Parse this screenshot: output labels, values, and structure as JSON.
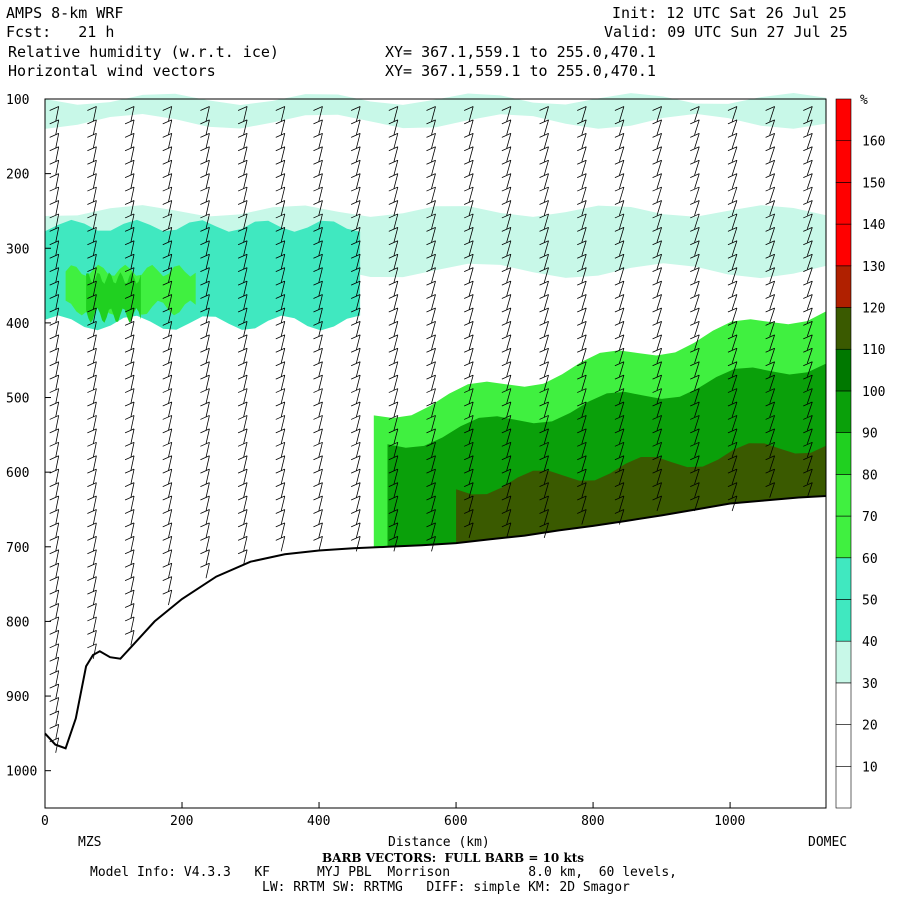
{
  "header": {
    "model": "AMPS 8-km WRF",
    "init": "Init: 12 UTC Sat 26 Jul 25",
    "fcst": "Fcst:   21 h",
    "valid": "Valid: 09 UTC Sun 27 Jul 25",
    "field1": "Relative humidity (w.r.t. ice)",
    "field2": "Horizontal wind vectors",
    "xy1": "XY= 367.1,559.1 to 255.0,470.1",
    "xy2": "XY= 367.1,559.1 to 255.0,470.1"
  },
  "footer": {
    "left_station": "MZS",
    "right_station": "DOMEC",
    "barb_note": "BARB VECTORS:  FULL BARB = 10 kts",
    "model_info": "Model Info: V4.3.3   KF      MYJ PBL  Morrison          8.0 km,  60 levels,",
    "model_info2": "LW: RRTM SW: RRTMG   DIFF: simple KM: 2D Smagor"
  },
  "colors": {
    "c0": "#ffffff",
    "c30": "#c8f8e8",
    "c40": "#40e8c0",
    "c60": "#40f040",
    "c70": "#20d020",
    "c80": "#0aa00a",
    "c90": "#007800",
    "c100": "#3a5a00",
    "c110": "#b02000",
    "c120": "#ff0000",
    "terrain": "#ffffff"
  },
  "chart_data": {
    "type": "heatmap",
    "title": "Relative humidity (w.r.t. ice)",
    "xlabel": "Distance (km)",
    "ylabel": "",
    "xlim": [
      0,
      1140
    ],
    "ylim": [
      1050,
      100
    ],
    "x_ticks": [
      0,
      200,
      400,
      600,
      800,
      1000
    ],
    "y_ticks": [
      100,
      200,
      300,
      400,
      500,
      600,
      700,
      800,
      900,
      1000
    ],
    "colorbar": {
      "unit": "%",
      "ticks": [
        10,
        20,
        30,
        40,
        50,
        60,
        70,
        80,
        90,
        100,
        110,
        120,
        130,
        140,
        150,
        160
      ]
    },
    "terrain_surface": {
      "x": [
        0,
        15,
        30,
        45,
        60,
        70,
        80,
        95,
        110,
        130,
        160,
        200,
        250,
        300,
        350,
        400,
        450,
        500,
        550,
        600,
        650,
        700,
        750,
        800,
        850,
        900,
        950,
        1000,
        1050,
        1100,
        1140
      ],
      "y": [
        950,
        965,
        970,
        930,
        860,
        845,
        840,
        848,
        850,
        830,
        800,
        770,
        740,
        720,
        710,
        705,
        702,
        700,
        698,
        695,
        690,
        685,
        678,
        672,
        665,
        658,
        650,
        642,
        638,
        634,
        632
      ]
    },
    "humidity_regions": [
      {
        "range": "30-40",
        "description": "upper band",
        "x": [
          0,
          1140
        ],
        "y": [
          100,
          130
        ]
      },
      {
        "range": "30-40",
        "description": "band",
        "x": [
          0,
          1140
        ],
        "y": [
          250,
          330
        ]
      },
      {
        "range": "40-50",
        "description": "band",
        "x": [
          0,
          460
        ],
        "y": [
          270,
          400
        ]
      },
      {
        "range": "50-60",
        "description": "band",
        "x": [
          30,
          220
        ],
        "y": [
          330,
          380
        ]
      },
      {
        "range": "60-70",
        "description": "cell",
        "x": [
          60,
          140
        ],
        "y": [
          340,
          390
        ]
      },
      {
        "range": "70-80",
        "description": "lower layer",
        "x": [
          480,
          1140
        ],
        "y": [
          380,
          700
        ]
      },
      {
        "range": "80-90",
        "description": "lower layer",
        "x": [
          500,
          1140
        ],
        "y": [
          450,
          700
        ]
      },
      {
        "range": "90-100",
        "description": "near surface",
        "x": [
          600,
          1140
        ],
        "y": [
          560,
          700
        ]
      }
    ],
    "barb_columns_x": [
      20,
      75,
      130,
      185,
      240,
      295,
      350,
      405,
      460,
      515,
      570,
      625,
      680,
      735,
      790,
      845,
      900,
      955,
      1010,
      1065,
      1120
    ]
  }
}
